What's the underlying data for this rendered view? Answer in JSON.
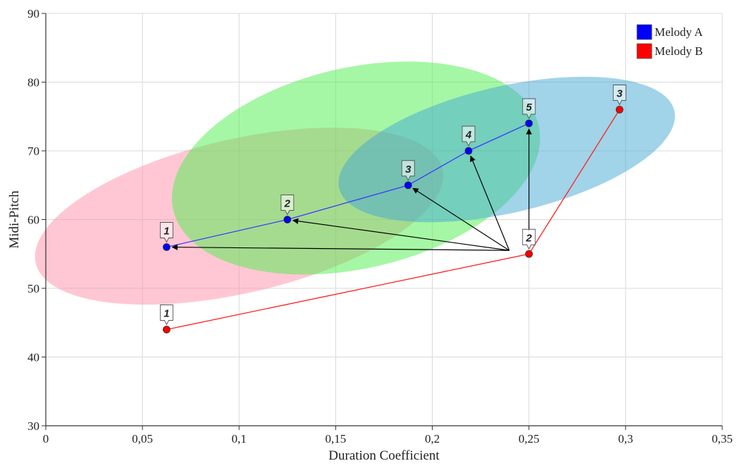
{
  "chart_data": {
    "type": "scatter",
    "xlabel": "Duration Coefficient",
    "ylabel": "Midi-Pitch",
    "xlim": [
      0,
      0.35
    ],
    "ylim": [
      30,
      90
    ],
    "x_ticks": [
      "0",
      "0,05",
      "0,1",
      "0,15",
      "0,2",
      "0,25",
      "0,3",
      "0,35"
    ],
    "y_ticks": [
      "30",
      "40",
      "50",
      "60",
      "70",
      "80",
      "90"
    ],
    "grid": true,
    "legend_position": "top-right",
    "series": [
      {
        "name": "Melody A",
        "color": "#0000ff",
        "line_color": "#3a3aff",
        "points": [
          {
            "label": "1",
            "x": 0.0625,
            "y": 56
          },
          {
            "label": "2",
            "x": 0.125,
            "y": 60
          },
          {
            "label": "3",
            "x": 0.1875,
            "y": 65
          },
          {
            "label": "4",
            "x": 0.21875,
            "y": 70
          },
          {
            "label": "5",
            "x": 0.25,
            "y": 74
          }
        ]
      },
      {
        "name": "Melody B",
        "color": "#ff0000",
        "line_color": "#ff2020",
        "points": [
          {
            "label": "1",
            "x": 0.0625,
            "y": 44
          },
          {
            "label": "2",
            "x": 0.25,
            "y": 55
          },
          {
            "label": "3",
            "x": 0.296875,
            "y": 76
          }
        ]
      }
    ],
    "regions": [
      {
        "color": "#ff8fa8",
        "opacity": 0.5,
        "center": [
          0.1,
          60.5
        ],
        "semi_axes": [
          0.108,
          11.2
        ],
        "rotation_deg": -13
      },
      {
        "color": "#4cf04c",
        "opacity": 0.5,
        "center": [
          0.1605,
          67.5
        ],
        "semi_axes": [
          0.097,
          14.6
        ],
        "rotation_deg": -13
      },
      {
        "color": "#44a8d4",
        "opacity": 0.5,
        "center": [
          0.2385,
          70.2
        ],
        "semi_axes": [
          0.089,
          9.2
        ],
        "rotation_deg": -13
      }
    ],
    "arrows": [
      {
        "from_series": 1,
        "from_point": 1,
        "to_series": 0,
        "to_point": 0
      },
      {
        "from_series": 1,
        "from_point": 1,
        "to_series": 0,
        "to_point": 1
      },
      {
        "from_series": 1,
        "from_point": 1,
        "to_series": 0,
        "to_point": 2
      },
      {
        "from_series": 1,
        "from_point": 1,
        "to_series": 0,
        "to_point": 3
      },
      {
        "from_series": 1,
        "from_point": 1,
        "to_series": 0,
        "to_point": 4
      }
    ]
  }
}
